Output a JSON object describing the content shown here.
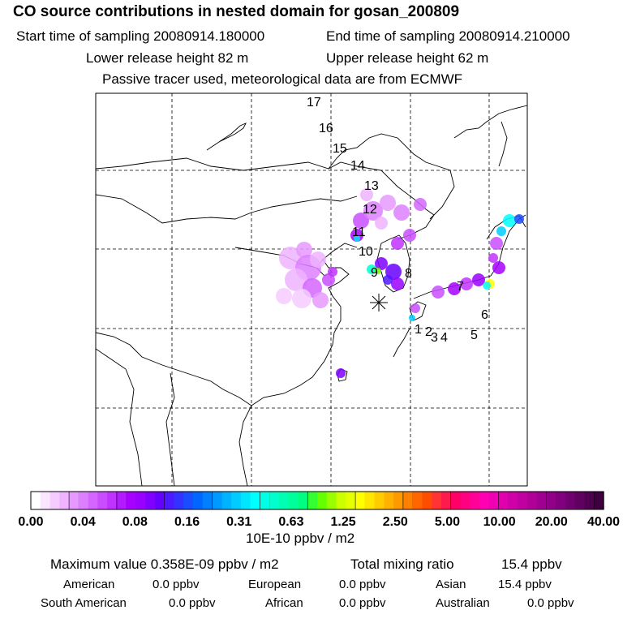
{
  "header": {
    "title": "CO  source contributions in nested domain for gosan_200809",
    "start_label": "Start time of sampling 20080914.180000",
    "end_label": "End time of sampling 20080914.210000",
    "lower_label": "Lower release height   82 m",
    "upper_label": "Upper release height   62 m",
    "note": "Passive tracer used, meteorological data are from ECMWF"
  },
  "chart_data": {
    "type": "heatmap",
    "title": "CO  source contributions in nested domain for gosan_200809",
    "units": "10E-10 ppbv / m2",
    "colorbar_ticks": [
      "0.00",
      "0.04",
      "0.08",
      "0.16",
      "0.31",
      "0.63",
      "1.25",
      "2.50",
      "5.00",
      "10.00",
      "20.00",
      "40.00"
    ],
    "colorbar_colors": [
      "#ffffff",
      "#fbe6ff",
      "#f5ccff",
      "#efb3ff",
      "#e699ff",
      "#dd80ff",
      "#d466ff",
      "#c94dff",
      "#bf33ff",
      "#b21aff",
      "#a600ff",
      "#9900ff",
      "#7f00ff",
      "#6600ff",
      "#4d1aff",
      "#3333ff",
      "#1a4dff",
      "#0066ff",
      "#0080ff",
      "#0099ff",
      "#00b3ff",
      "#00ccff",
      "#00e6ff",
      "#00ffff",
      "#00ffe6",
      "#00ffcc",
      "#00ffb3",
      "#00ff99",
      "#00ff80",
      "#33ff33",
      "#66ff00",
      "#99ff00",
      "#ccff00",
      "#e6ff00",
      "#ffff00",
      "#ffe600",
      "#ffcc00",
      "#ffb300",
      "#ff9900",
      "#ff8000",
      "#ff6600",
      "#ff4d00",
      "#ff3333",
      "#ff1a4d",
      "#ff0066",
      "#ff0080",
      "#ff0099",
      "#ff00b3",
      "#f000b3",
      "#e000b0",
      "#d000a8",
      "#c000a0",
      "#b00098",
      "#a00090",
      "#900088",
      "#800080",
      "#700070",
      "#600060",
      "#500050",
      "#400040"
    ],
    "trajectory_labels": [
      "1",
      "2",
      "3",
      "4",
      "5",
      "6",
      "7",
      "8",
      "9",
      "10",
      "11",
      "12",
      "13",
      "14",
      "15",
      "16",
      "17"
    ],
    "receptor": "Gosan"
  },
  "footer": {
    "max_label": "Maximum value  0.358E-09 ppbv / m2",
    "total_label": "Total mixing ratio",
    "total_value": "15.4 ppbv",
    "regions": [
      {
        "name": "American",
        "value": "0.0 ppbv"
      },
      {
        "name": "European",
        "value": "0.0 ppbv"
      },
      {
        "name": "Asian",
        "value": "15.4 ppbv"
      },
      {
        "name": "South American",
        "value": "0.0 ppbv"
      },
      {
        "name": "African",
        "value": "0.0 ppbv"
      },
      {
        "name": "Australian",
        "value": "0.0 ppbv"
      }
    ]
  }
}
